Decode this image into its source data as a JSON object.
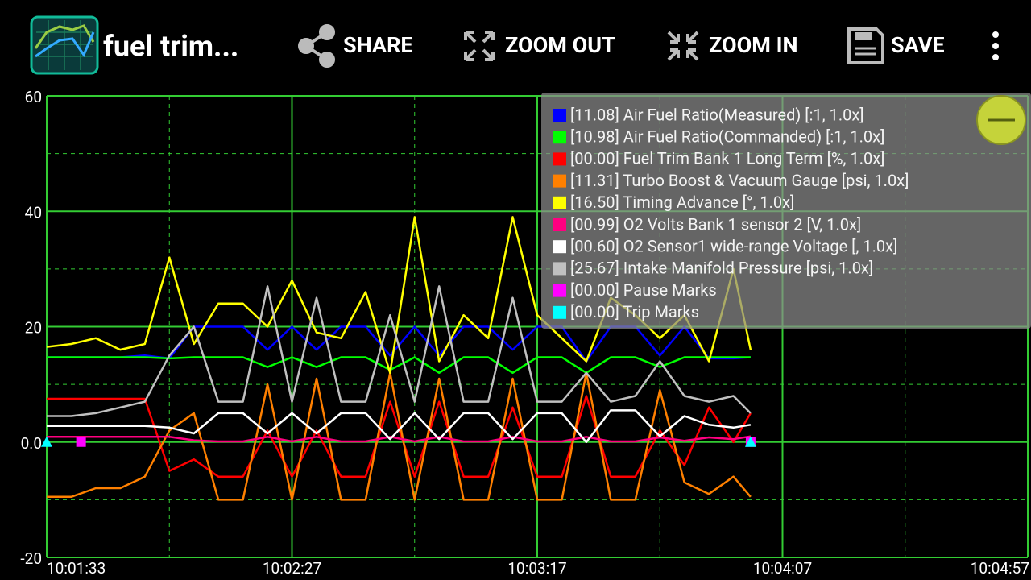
{
  "toolbar": {
    "title": "fuel trim...",
    "buttons": [
      "SHARE",
      "ZOOM OUT",
      "ZOOM IN",
      "SAVE"
    ]
  },
  "chart_data": {
    "type": "line",
    "x": [
      0,
      0.1,
      0.2,
      0.3,
      0.4,
      0.5,
      0.6,
      0.7,
      0.8,
      0.9,
      1.0,
      1.1,
      1.2,
      1.3,
      1.4,
      1.5,
      1.6,
      1.7,
      1.8,
      1.9,
      2.0,
      2.1,
      2.2,
      2.3,
      2.4,
      2.5,
      2.6,
      2.7,
      2.8,
      2.87
    ],
    "xlim": [
      0,
      4
    ],
    "xticks": [
      {
        "value": 0,
        "label": "10:01:33"
      },
      {
        "value": 1,
        "label": "10:02:27"
      },
      {
        "value": 2,
        "label": "10:03:17"
      },
      {
        "value": 3,
        "label": "10:04:07"
      },
      {
        "value": 4,
        "label": "10:04:57"
      }
    ],
    "ylim": [
      -20,
      60
    ],
    "yticks": [
      -20,
      {
        "value": 0,
        "label": "0.0"
      },
      20,
      40,
      60
    ],
    "grid": true,
    "legend": "top-right",
    "series": [
      {
        "name": "[11.08] Air Fuel Ratio(Measured) [:1, 1.0x]",
        "color": "#0000ff",
        "values": [
          14.7,
          14.7,
          14.7,
          14.7,
          15,
          14.5,
          20,
          20,
          20,
          16,
          20,
          16,
          20,
          20,
          15,
          20,
          15,
          20,
          20,
          16,
          20,
          20,
          14,
          20,
          20,
          15,
          20,
          14.5,
          14.5,
          14.7
        ]
      },
      {
        "name": "[10.98] Air Fuel Ratio(Commanded) [:1, 1.0x]",
        "color": "#00ff00",
        "values": [
          14.7,
          14.7,
          14.7,
          14.7,
          14.7,
          14.5,
          14.7,
          14.7,
          14.7,
          13,
          14.7,
          13,
          14.7,
          14.7,
          12.5,
          14.7,
          12,
          14.7,
          14.7,
          12,
          14.7,
          14.7,
          12,
          14.7,
          14.7,
          13,
          14.7,
          14.7,
          14.7,
          14.7
        ]
      },
      {
        "name": "[00.00] Fuel Trim Bank 1 Long Term [%, 1.0x]",
        "color": "#ff0000",
        "values": [
          7.5,
          7.5,
          7.5,
          7.5,
          7.5,
          -5,
          -3,
          -6,
          -6,
          2,
          -6,
          2,
          -6,
          -6,
          7,
          -6,
          7,
          -6,
          -6,
          6,
          -6,
          -6,
          8,
          -6,
          -6,
          2,
          -4,
          6,
          0,
          5
        ]
      },
      {
        "name": "[11.31] Turbo Boost & Vacuum Gauge [psi, 1.0x]",
        "color": "#ff8000",
        "values": [
          -9.5,
          -9.5,
          -8,
          -8,
          -6,
          2,
          5,
          -10,
          -10,
          10,
          -10,
          11,
          -10,
          -10,
          12,
          -10,
          11,
          -10,
          -10,
          11,
          -10,
          -10,
          12,
          -10,
          -10,
          9,
          -7,
          -9,
          -6,
          -9.5
        ]
      },
      {
        "name": "[16.50] Timing Advance [°, 1.0x]",
        "color": "#ffff00",
        "values": [
          16.5,
          17,
          18,
          16,
          17,
          32,
          17,
          24,
          24,
          20,
          28,
          19,
          18,
          26,
          12,
          39,
          14,
          22,
          18,
          39,
          22,
          18,
          14,
          25,
          22,
          18,
          22,
          14,
          30,
          16
        ]
      },
      {
        "name": "[00.99] O2 Volts Bank 1 sensor 2 [V, 1.0x]",
        "color": "#ff0080",
        "values": [
          0.9,
          0.9,
          0.9,
          0.9,
          0.9,
          0.9,
          0.3,
          0.1,
          0.1,
          0.9,
          0.1,
          0.9,
          0.1,
          0.1,
          0.9,
          0.1,
          0.9,
          0.1,
          0.1,
          0.9,
          0.1,
          0.1,
          0.9,
          0.1,
          0.1,
          0.8,
          0.2,
          0.8,
          0.5,
          0.99
        ]
      },
      {
        "name": "[00.60] O2 Sensor1 wide-range Voltage [, 1.0x]",
        "color": "#ffffff",
        "values": [
          2.8,
          2.8,
          2.8,
          2.8,
          2.8,
          2.5,
          1.5,
          5,
          5,
          1.5,
          5,
          1.5,
          5,
          5,
          0.5,
          5,
          0.5,
          5,
          5,
          0.5,
          5,
          5,
          0,
          5.5,
          5.5,
          1,
          4.5,
          3,
          2.5,
          3
        ]
      },
      {
        "name": "[25.67] Intake Manifold Pressure [psi, 1.0x]",
        "color": "#c0c0c0",
        "values": [
          4.5,
          4.5,
          5,
          6,
          7,
          15,
          20,
          7,
          7,
          27,
          7,
          25,
          7,
          7,
          22,
          7,
          27,
          7,
          7,
          25,
          7,
          7,
          12,
          7,
          8,
          14,
          8,
          7,
          8,
          5
        ]
      },
      {
        "name": "[00.00] Pause Marks",
        "color": "#ff00ff",
        "marker": "square",
        "x": [
          0.14,
          2.87
        ],
        "values": [
          0,
          0
        ]
      },
      {
        "name": "[00.00] Trip Marks",
        "color": "#00ffff",
        "marker": "triangle",
        "x": [
          0,
          2.87
        ],
        "values": [
          0,
          0
        ]
      }
    ]
  }
}
